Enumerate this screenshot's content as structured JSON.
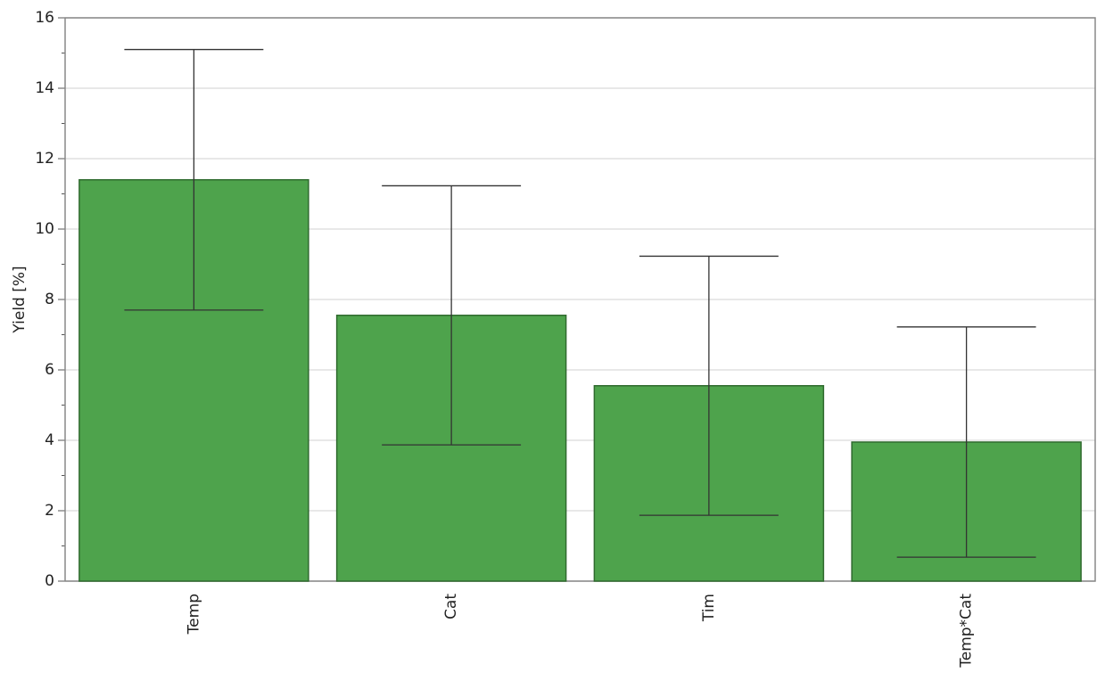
{
  "chart_data": {
    "type": "bar",
    "y_label": "Yield [%]",
    "categories": [
      "Temp",
      "Cat",
      "Tim",
      "Temp*Cat"
    ],
    "values": [
      11.4,
      7.55,
      5.55,
      3.95
    ],
    "errors": [
      3.7,
      3.68,
      3.68,
      3.27
    ],
    "color": "#4ea34c",
    "ylim": [
      0,
      16
    ],
    "yticks": [
      0,
      2,
      4,
      6,
      8,
      10,
      12,
      14,
      16
    ],
    "grid": true
  }
}
